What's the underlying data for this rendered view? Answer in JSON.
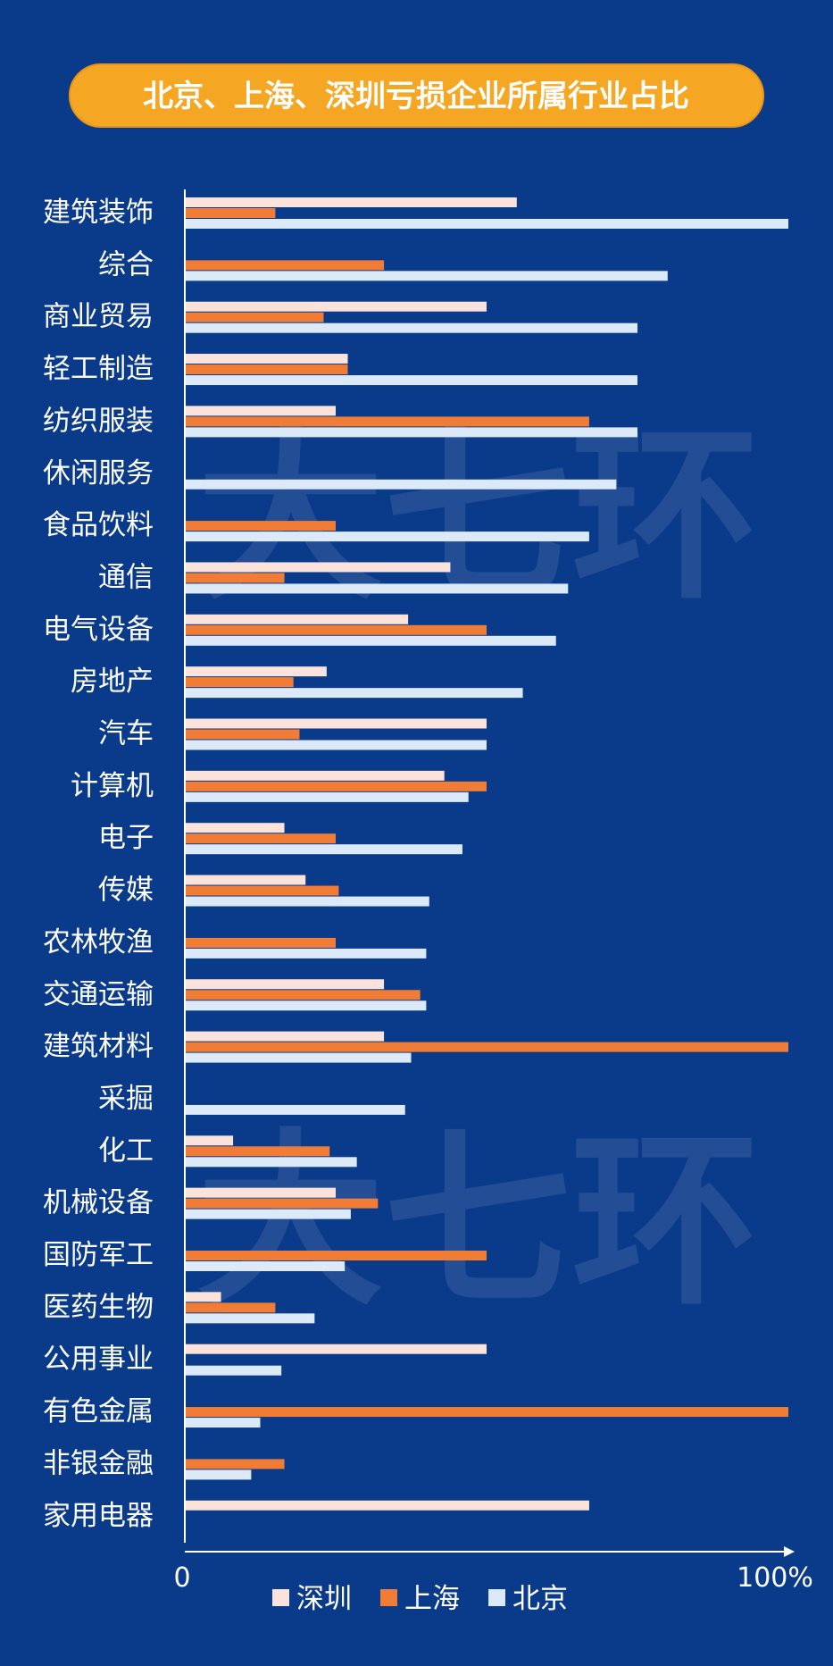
{
  "chart_data": {
    "type": "bar",
    "orientation": "horizontal",
    "title": "北京、上海、深圳亏损企业所属行业占比",
    "watermark": "大七环",
    "categories": [
      "建筑装饰",
      "综合",
      "商业贸易",
      "轻工制造",
      "纺织服装",
      "休闲服务",
      "食品饮料",
      "通信",
      "电气设备",
      "房地产",
      "汽车",
      "计算机",
      "电子",
      "传媒",
      "农林牧渔",
      "交通运输",
      "建筑材料",
      "采掘",
      "化工",
      "机械设备",
      "国防军工",
      "医药生物",
      "公用事业",
      "有色金属",
      "非银金融",
      "家用电器"
    ],
    "series": [
      {
        "name": "深圳",
        "color": "#fbe3dc",
        "values": [
          55,
          0,
          50,
          27,
          25,
          0,
          0,
          44,
          37,
          23.5,
          50,
          43,
          16.5,
          20,
          0,
          33,
          33,
          0,
          8,
          25,
          0,
          6,
          50,
          0,
          0,
          67
        ]
      },
      {
        "name": "上海",
        "color": "#f07c35",
        "values": [
          15,
          33,
          23,
          27,
          67,
          0,
          25,
          16.5,
          50,
          18,
          19,
          50,
          25,
          25.5,
          25,
          39,
          100,
          0,
          24,
          32,
          50,
          15,
          0,
          100,
          16.5,
          0
        ]
      },
      {
        "name": "北京",
        "color": "#dbe9f8",
        "values": [
          100,
          80,
          75,
          75,
          75,
          71.5,
          67,
          63.5,
          61.5,
          56,
          50,
          47,
          46,
          40.5,
          40,
          40,
          37.5,
          36.5,
          28.5,
          27.5,
          26.5,
          21.5,
          16,
          12.5,
          11,
          0
        ]
      }
    ],
    "xlim": [
      0,
      100
    ],
    "x_tick_labels": {
      "min": "0",
      "max": "100%"
    },
    "legend_position": "bottom",
    "grid": false
  }
}
